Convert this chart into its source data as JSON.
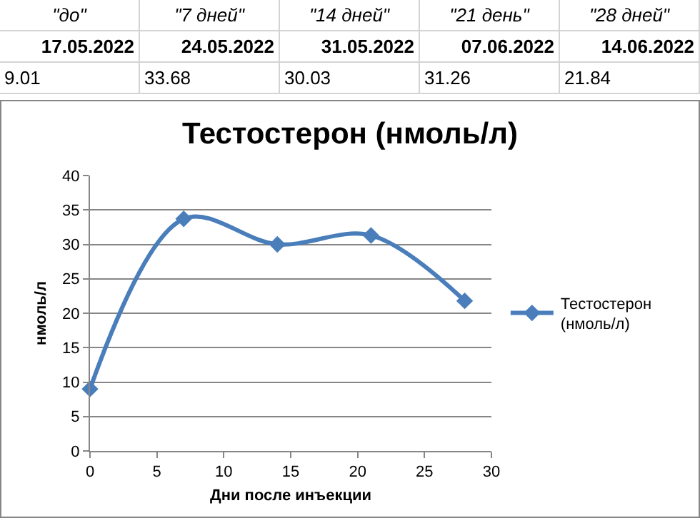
{
  "chart_data": {
    "type": "line",
    "title": "Тестостерон (нмоль/л)",
    "xlabel": "Дни после инъекции",
    "ylabel": "нмоль/л",
    "annotations": [
      "\"до\"",
      "\"7 дней\"",
      "\"14 дней\"",
      "\"21 день\"",
      "\"28 дней\"",
      "17.05.2022",
      "24.05.2022",
      "31.05.2022",
      "07.06.2022",
      "14.06.2022",
      "9.01",
      "33.68",
      "30.03",
      "31.26",
      "21.84"
    ],
    "x": [
      0,
      7,
      14,
      21,
      28
    ],
    "series": [
      {
        "name": "Тестостерон (нмоль/л)",
        "color": "#4a7ebb",
        "values": [
          9,
          33.7,
          30,
          31.3,
          21.8
        ]
      }
    ],
    "xlim": [
      0,
      30
    ],
    "xticks": [
      0,
      5,
      10,
      15,
      20,
      25,
      30
    ],
    "ylim": [
      0,
      40
    ],
    "yticks": [
      0,
      5,
      10,
      15,
      20,
      25,
      30,
      35,
      40
    ],
    "grid": "y",
    "legend": "right",
    "marker": "diamond",
    "line_style": "solid"
  }
}
